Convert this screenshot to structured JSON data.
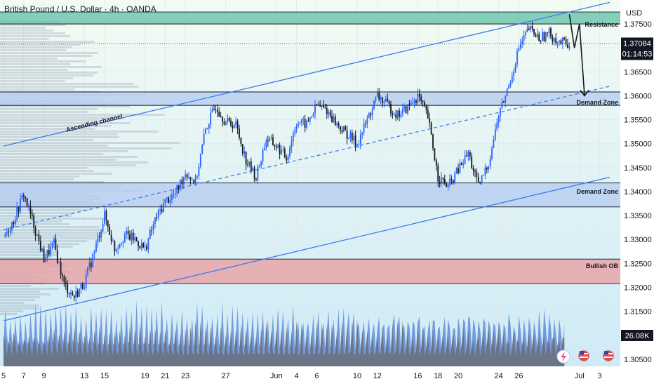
{
  "header": {
    "title": "British Pound / U.S. Dollar · 4h · OANDA",
    "currency": "USD"
  },
  "colors": {
    "up": "#2962ff",
    "down": "#131722",
    "resistance": "#5fc0a7",
    "demand": "#b7cdf0",
    "bullish_ob": "#e8a0a4",
    "channel": "#3d7bf0",
    "volume_blue": "#5a86d6",
    "volume_gray": "#6b6f78"
  },
  "price_badge": {
    "price": "1.37084",
    "countdown": "01:14:53"
  },
  "volume_badge": {
    "value": "26.08K"
  },
  "annotations": {
    "channel_label": "Ascending channel",
    "resistance": "Resistance",
    "demand_upper": "Demand Zone",
    "demand_lower": "Demand Zone",
    "bullish_ob": "Bullish OB"
  },
  "chart_data": {
    "type": "candlestick",
    "symbol": "GBPUSD",
    "timeframe": "4h",
    "y_ticks": [
      "1.37500",
      "1.37000",
      "1.36500",
      "1.36000",
      "1.35500",
      "1.35000",
      "1.34500",
      "1.34000",
      "1.33500",
      "1.33000",
      "1.32500",
      "1.32000",
      "1.31500",
      "1.31000",
      "1.30500"
    ],
    "y_tick_values": [
      1.375,
      1.37,
      1.365,
      1.36,
      1.355,
      1.35,
      1.345,
      1.34,
      1.335,
      1.33,
      1.325,
      1.32,
      1.315,
      1.31,
      1.305
    ],
    "x_ticks": [
      "5",
      "7",
      "9",
      "13",
      "15",
      "19",
      "21",
      "23",
      "27",
      "Jun",
      "4",
      "6",
      "10",
      "12",
      "16",
      "18",
      "20",
      "24",
      "26",
      "Jul",
      "3"
    ],
    "x_tick_days": [
      0,
      2,
      4,
      8,
      10,
      14,
      16,
      18,
      22,
      27,
      29,
      31,
      35,
      37,
      41,
      43,
      45,
      49,
      51,
      57,
      59
    ],
    "ylim": [
      1.3035,
      1.38
    ],
    "zones": [
      {
        "name": "Resistance",
        "low": 1.375,
        "high": 1.3775
      },
      {
        "name": "Demand Zone",
        "low": 1.358,
        "high": 1.3608
      },
      {
        "name": "Demand Zone",
        "low": 1.3368,
        "high": 1.3418
      },
      {
        "name": "Bullish OB",
        "low": 1.3208,
        "high": 1.3259
      }
    ],
    "channel": {
      "upper": [
        [
          0,
          1.3495
        ],
        [
          60,
          1.3795
        ]
      ],
      "middle": [
        [
          0,
          1.332
        ],
        [
          60,
          1.362
        ]
      ],
      "lower": [
        [
          0,
          1.313
        ],
        [
          60,
          1.343
        ]
      ]
    },
    "projection": [
      [
        56.0,
        1.377
      ],
      [
        56.5,
        1.37
      ],
      [
        57.0,
        1.375
      ],
      [
        57.5,
        1.36
      ]
    ],
    "last_price": 1.37084,
    "close_path": [
      [
        0,
        1.3305
      ],
      [
        1,
        1.334
      ],
      [
        2,
        1.3395
      ],
      [
        3,
        1.333
      ],
      [
        4,
        1.326
      ],
      [
        5,
        1.329
      ],
      [
        6,
        1.3205
      ],
      [
        7,
        1.318
      ],
      [
        8,
        1.321
      ],
      [
        9,
        1.3275
      ],
      [
        10,
        1.335
      ],
      [
        11,
        1.328
      ],
      [
        12,
        1.331
      ],
      [
        13,
        1.33
      ],
      [
        14,
        1.328
      ],
      [
        15,
        1.334
      ],
      [
        16,
        1.338
      ],
      [
        17,
        1.3395
      ],
      [
        18,
        1.344
      ],
      [
        19,
        1.342
      ],
      [
        20,
        1.353
      ],
      [
        21,
        1.358
      ],
      [
        22,
        1.3545
      ],
      [
        23,
        1.354
      ],
      [
        24,
        1.3465
      ],
      [
        25,
        1.343
      ],
      [
        26,
        1.351
      ],
      [
        27,
        1.3495
      ],
      [
        28,
        1.347
      ],
      [
        29,
        1.3545
      ],
      [
        30,
        1.354
      ],
      [
        31,
        1.358
      ],
      [
        32,
        1.357
      ],
      [
        33,
        1.354
      ],
      [
        34,
        1.352
      ],
      [
        35,
        1.35
      ],
      [
        36,
        1.355
      ],
      [
        37,
        1.36
      ],
      [
        38,
        1.358
      ],
      [
        39,
        1.356
      ],
      [
        40,
        1.3575
      ],
      [
        41,
        1.36
      ],
      [
        42,
        1.3555
      ],
      [
        43,
        1.343
      ],
      [
        44,
        1.341
      ],
      [
        45,
        1.3445
      ],
      [
        46,
        1.348
      ],
      [
        47,
        1.341
      ],
      [
        48,
        1.346
      ],
      [
        49,
        1.356
      ],
      [
        50,
        1.362
      ],
      [
        51,
        1.37
      ],
      [
        52,
        1.374
      ],
      [
        53,
        1.372
      ],
      [
        54,
        1.373
      ],
      [
        55,
        1.3712
      ],
      [
        56,
        1.37084
      ]
    ]
  }
}
